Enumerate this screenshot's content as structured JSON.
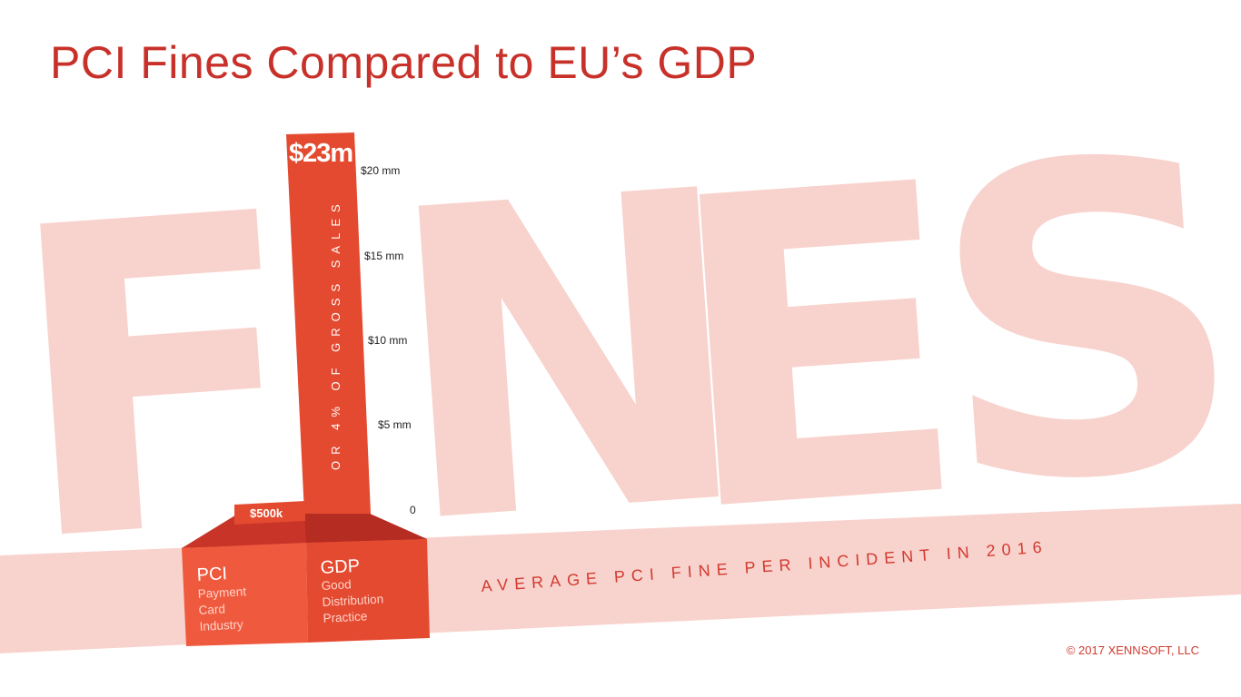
{
  "title": "PCI Fines Compared to EU’s GDP",
  "copyright": "© 2017 XENNSOFT, LLC",
  "background_word": [
    "F",
    "N",
    "E",
    "S"
  ],
  "band_label": "AVERAGE PCI FINE PER INCIDENT IN 2016",
  "colors": {
    "title": "#c8312a",
    "bar_gdp": "#e44a30",
    "bar_pci": "#ef5a3e",
    "background_letters": "#f8d3cd",
    "band": "#f8d3cd"
  },
  "chart_data": {
    "type": "bar",
    "title": "PCI Fines Compared to EU’s GDP",
    "categories": [
      "PCI",
      "GDP"
    ],
    "category_details": [
      {
        "label": "PCI",
        "sublabel": [
          "Payment",
          "Card",
          "Industry"
        ]
      },
      {
        "label": "GDP",
        "sublabel": [
          "Good",
          "Distribution",
          "Practice"
        ]
      }
    ],
    "values": [
      0.5,
      23
    ],
    "value_labels": [
      "$500k",
      "$23m"
    ],
    "gdp_annotation": "OR 4% OF GROSS SALES",
    "y_ticks": [
      {
        "value": 0,
        "label": "0"
      },
      {
        "value": 5,
        "label": "$5 mm"
      },
      {
        "value": 10,
        "label": "$10 mm"
      },
      {
        "value": 15,
        "label": "$15 mm"
      },
      {
        "value": 20,
        "label": "$20 mm"
      }
    ],
    "ylim": [
      0,
      23
    ],
    "grid": false
  }
}
